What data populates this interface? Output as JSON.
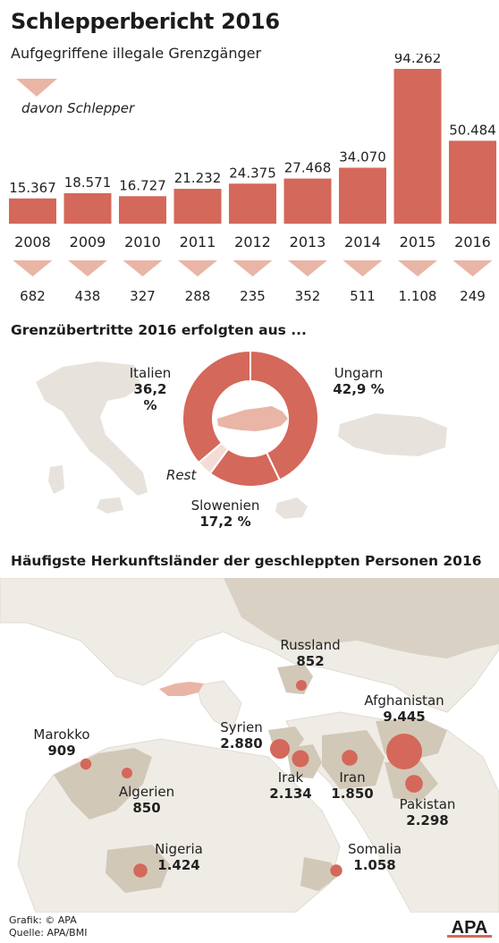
{
  "title": "Schlepperbericht 2016",
  "subtitle": "Aufgegriffene illegale Grenzgänger",
  "legend_schlepper": "davon Schlepper",
  "colors": {
    "bar": "#d4685a",
    "triangle": "#e9b5a6",
    "land": "#d9d1c4",
    "land_dark": "#c9bfae",
    "sea": "#ffffff",
    "text": "#222222"
  },
  "chart_data": [
    {
      "type": "bar",
      "title": "Schlepperbericht 2016",
      "subtitle": "Aufgegriffene illegale Grenzgänger",
      "categories": [
        "2008",
        "2009",
        "2010",
        "2011",
        "2012",
        "2013",
        "2014",
        "2015",
        "2016"
      ],
      "series": [
        {
          "name": "",
          "values": [
            15367,
            18571,
            16727,
            21232,
            24375,
            27468,
            34070,
            94262,
            50484
          ],
          "labels": [
            "15.367",
            "18.571",
            "16.727",
            "21.232",
            "24.375",
            "27.468",
            "34.070",
            "94.262",
            "50.484"
          ]
        },
        {
          "name": "davon Schlepper",
          "values": [
            682,
            438,
            327,
            288,
            235,
            352,
            511,
            1108,
            249
          ],
          "labels": [
            "682",
            "438",
            "327",
            "288",
            "235",
            "352",
            "511",
            "1.108",
            "249"
          ]
        }
      ]
    },
    {
      "type": "pie",
      "title": "Grenzübertritte 2016 erfolgten aus ...",
      "slices": [
        {
          "name": "Ungarn",
          "value": 42.9,
          "label": "42,9 %"
        },
        {
          "name": "Slowenien",
          "value": 17.2,
          "label": "17,2 %"
        },
        {
          "name": "Rest",
          "value": 3.7,
          "label": ""
        },
        {
          "name": "Italien",
          "value": 36.2,
          "label": "36,2 %"
        }
      ]
    },
    {
      "type": "scatter",
      "title": "Häufigste Herkunftsländer der geschleppten Personen 2016",
      "points": [
        {
          "name": "Afghanistan",
          "value": 9445,
          "label": "9.445"
        },
        {
          "name": "Marokko",
          "value": 909,
          "label": "909"
        },
        {
          "name": "Syrien",
          "value": 2880,
          "label": "2.880"
        },
        {
          "name": "Russland",
          "value": 852,
          "label": "852"
        },
        {
          "name": "Algerien",
          "value": 850,
          "label": "850"
        },
        {
          "name": "Irak",
          "value": 2134,
          "label": "2.134"
        },
        {
          "name": "Iran",
          "value": 1850,
          "label": "1.850"
        },
        {
          "name": "Pakistan",
          "value": 2298,
          "label": "2.298"
        },
        {
          "name": "Nigeria",
          "value": 1424,
          "label": "1.424"
        },
        {
          "name": "Somalia",
          "value": 1058,
          "label": "1.058"
        }
      ]
    }
  ],
  "footer": {
    "grafik": "Grafik: © APA",
    "quelle": "Quelle: APA/BMI",
    "logo": "APA"
  }
}
